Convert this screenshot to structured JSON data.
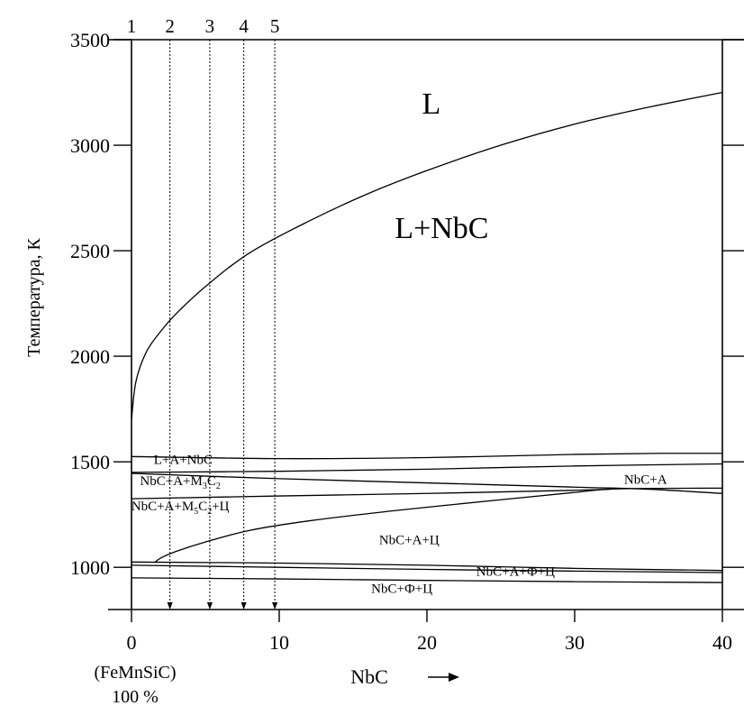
{
  "chart_data": {
    "type": "phase-diagram",
    "xlabel": "NbC",
    "ylabel": "Температура, К",
    "x_origin_caption": [
      "(FeMnSiC)",
      "100 %"
    ],
    "xlim": [
      0,
      40
    ],
    "ylim": [
      800,
      3500
    ],
    "x_ticks": [
      "0",
      "10",
      "20",
      "30",
      "40"
    ],
    "x_tick_values": [
      0,
      10,
      20,
      30,
      40
    ],
    "y_ticks": [
      "1000",
      "1500",
      "2000",
      "2500",
      "3000",
      "3500"
    ],
    "y_tick_values": [
      1000,
      1500,
      2000,
      2500,
      3000,
      3500
    ],
    "sections": [
      {
        "label": "1",
        "x": 0
      },
      {
        "label": "2",
        "x": 2.6
      },
      {
        "label": "3",
        "x": 5.3
      },
      {
        "label": "4",
        "x": 7.6
      },
      {
        "label": "5",
        "x": 9.7
      }
    ],
    "regions": [
      {
        "label": "L",
        "x": 20.3,
        "y": 3150,
        "size": "big"
      },
      {
        "label": "L+NbC",
        "x": 21.0,
        "y": 2560,
        "size": "big"
      },
      {
        "label": "L+A+NbC",
        "x": 3.5,
        "y": 1490,
        "size": "small"
      },
      {
        "label": "NbC+A+M",
        "sub": "3",
        "label2": "C",
        "sub2": "2",
        "x": 3.3,
        "y": 1390,
        "size": "small"
      },
      {
        "label": "NbC+A+M",
        "sub": "5",
        "label2": "C",
        "sub2": "2",
        "label3": "+Ц",
        "x": 3.3,
        "y": 1270,
        "size": "small"
      },
      {
        "label": "NbC+A",
        "x": 34.8,
        "y": 1395,
        "size": "small"
      },
      {
        "label": "NbC+A+Ц",
        "x": 18.8,
        "y": 1110,
        "size": "small"
      },
      {
        "label": "NbC+A+Ф+Ц",
        "x": 26.0,
        "y": 960,
        "size": "small"
      },
      {
        "label": "NbC+Ф+Ц",
        "x": 18.3,
        "y": 880,
        "size": "small"
      }
    ],
    "boundaries": [
      {
        "name": "liquidus",
        "points": [
          [
            0,
            1700
          ],
          [
            0.3,
            1880
          ],
          [
            1,
            2020
          ],
          [
            2,
            2120
          ],
          [
            3,
            2200
          ],
          [
            5,
            2330
          ],
          [
            8,
            2490
          ],
          [
            12,
            2640
          ],
          [
            16,
            2770
          ],
          [
            20,
            2880
          ],
          [
            25,
            3000
          ],
          [
            30,
            3100
          ],
          [
            35,
            3180
          ],
          [
            40,
            3250
          ]
        ]
      },
      {
        "name": "solidus-top",
        "points": [
          [
            0,
            1525
          ],
          [
            10,
            1515
          ],
          [
            20,
            1520
          ],
          [
            30,
            1535
          ],
          [
            36,
            1540
          ],
          [
            40,
            1540
          ]
        ]
      },
      {
        "name": "upper-2",
        "points": [
          [
            0,
            1450
          ],
          [
            10,
            1455
          ],
          [
            20,
            1465
          ],
          [
            30,
            1480
          ],
          [
            40,
            1490
          ]
        ]
      },
      {
        "name": "upper-3",
        "points": [
          [
            0,
            1445
          ],
          [
            10,
            1420
          ],
          [
            20,
            1400
          ],
          [
            30,
            1380
          ],
          [
            35,
            1370
          ],
          [
            40,
            1350
          ]
        ]
      },
      {
        "name": "upper-4",
        "points": [
          [
            0,
            1325
          ],
          [
            10,
            1338
          ],
          [
            20,
            1350
          ],
          [
            30,
            1365
          ],
          [
            33,
            1372
          ]
        ]
      },
      {
        "name": "cementite",
        "points": [
          [
            1.6,
            1025
          ],
          [
            2,
            1045
          ],
          [
            3,
            1075
          ],
          [
            5,
            1120
          ],
          [
            8,
            1175
          ],
          [
            12,
            1220
          ],
          [
            18,
            1270
          ],
          [
            25,
            1320
          ],
          [
            30,
            1355
          ],
          [
            33,
            1372
          ],
          [
            40,
            1375
          ]
        ]
      },
      {
        "name": "lower-1",
        "points": [
          [
            0,
            1025
          ],
          [
            10,
            1020
          ],
          [
            20,
            1010
          ],
          [
            30,
            995
          ],
          [
            40,
            985
          ]
        ]
      },
      {
        "name": "lower-2",
        "points": [
          [
            0,
            1010
          ],
          [
            10,
            1000
          ],
          [
            20,
            990
          ],
          [
            30,
            982
          ],
          [
            40,
            975
          ]
        ]
      },
      {
        "name": "lower-3",
        "points": [
          [
            0,
            950
          ],
          [
            10,
            945
          ],
          [
            20,
            938
          ],
          [
            30,
            932
          ],
          [
            40,
            928
          ]
        ]
      }
    ]
  }
}
